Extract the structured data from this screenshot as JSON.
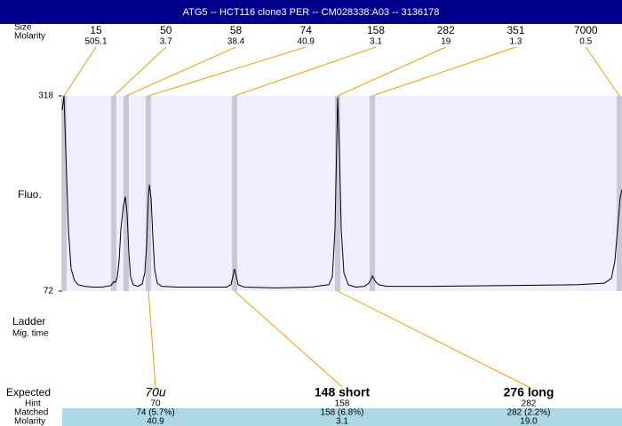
{
  "chart_data": {
    "type": "electropherogram",
    "title": "ATG5 -- HCT116 clone3 PER -- CM028338:A03 -- 3136178",
    "row_labels": {
      "size": "Size",
      "molarity": "Molarity",
      "y_axis": "Fluo.",
      "ladder": "Ladder",
      "mig_time": "Mig. time",
      "expected": "Expected",
      "hint": "Hint",
      "matched": "Matched",
      "expected_molarity": "Molarity"
    },
    "ylim": [
      72,
      318
    ],
    "yticks": [
      72,
      318
    ],
    "xlim": [
      0,
      630
    ],
    "ladder": {
      "sizes": [
        15,
        50,
        58,
        74,
        158,
        282,
        351,
        7000
      ],
      "molarity": [
        505.1,
        3.7,
        38.4,
        40.9,
        3.1,
        19,
        1.3,
        0.5
      ],
      "x": [
        2,
        58,
        72,
        97,
        194,
        310,
        349,
        627
      ]
    },
    "trace": {
      "color": "#000000",
      "x": [
        0,
        2,
        4,
        7,
        10,
        14,
        18,
        25,
        35,
        45,
        55,
        58,
        60,
        62,
        64,
        66,
        69,
        71,
        73,
        75,
        77,
        80,
        85,
        90,
        93,
        95,
        97,
        98,
        100,
        102,
        104,
        107,
        112,
        130,
        160,
        185,
        190,
        192,
        194,
        196,
        198,
        205,
        240,
        280,
        300,
        304,
        307,
        309,
        310,
        312,
        314,
        317,
        322,
        330,
        340,
        345,
        348,
        349,
        352,
        356,
        365,
        420,
        500,
        580,
        610,
        618,
        622,
        625,
        628,
        630
      ],
      "values": [
        300,
        318,
        250,
        150,
        100,
        85,
        80,
        78,
        77,
        77,
        79,
        84,
        83,
        90,
        110,
        150,
        180,
        191,
        170,
        120,
        90,
        80,
        78,
        81,
        95,
        130,
        190,
        206,
        190,
        140,
        100,
        82,
        78,
        77,
        77,
        77,
        80,
        90,
        100,
        90,
        80,
        77,
        76,
        77,
        80,
        90,
        150,
        260,
        316,
        250,
        150,
        95,
        80,
        77,
        78,
        82,
        88,
        91,
        85,
        80,
        78,
        78,
        79,
        80,
        82,
        88,
        110,
        150,
        190,
        200
      ]
    },
    "expected": {
      "names": [
        "70u",
        "148 short",
        "276 long"
      ],
      "hint": [
        70,
        158,
        282
      ],
      "matched": [
        "74 (5.7%)",
        "158 (6.8%)",
        "282 (2.2%)"
      ],
      "molarity": [
        40.9,
        3.1,
        19
      ],
      "molarity_labels": [
        "40.9",
        "3.1",
        "19.0"
      ]
    }
  }
}
